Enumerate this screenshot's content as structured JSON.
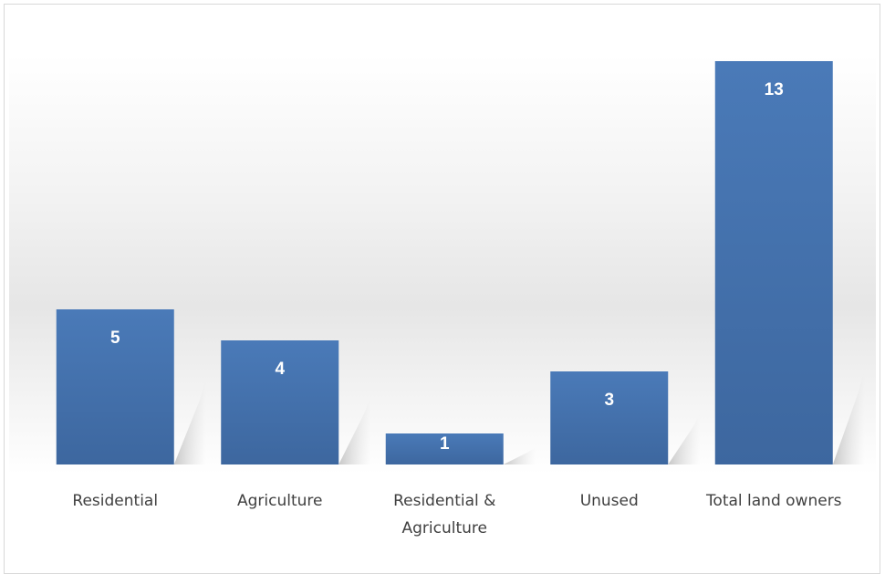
{
  "chart_data": {
    "type": "bar",
    "title": "",
    "xlabel": "",
    "ylabel": "",
    "categories": [
      "Residential",
      "Agriculture",
      "Residential & Agriculture",
      "Unused",
      "Total land owners"
    ],
    "category_lines": [
      [
        "Residential"
      ],
      [
        "Agriculture"
      ],
      [
        "Residential &",
        "Agriculture"
      ],
      [
        "Unused"
      ],
      [
        "Total land owners"
      ]
    ],
    "values": [
      5,
      4,
      1,
      3,
      13
    ],
    "ylim": [
      0,
      13
    ],
    "grid": false,
    "legend": "none",
    "bar_color": "#4a7ab8",
    "bar_color_dark": "#3d679f",
    "label_color": "#ffffff"
  }
}
